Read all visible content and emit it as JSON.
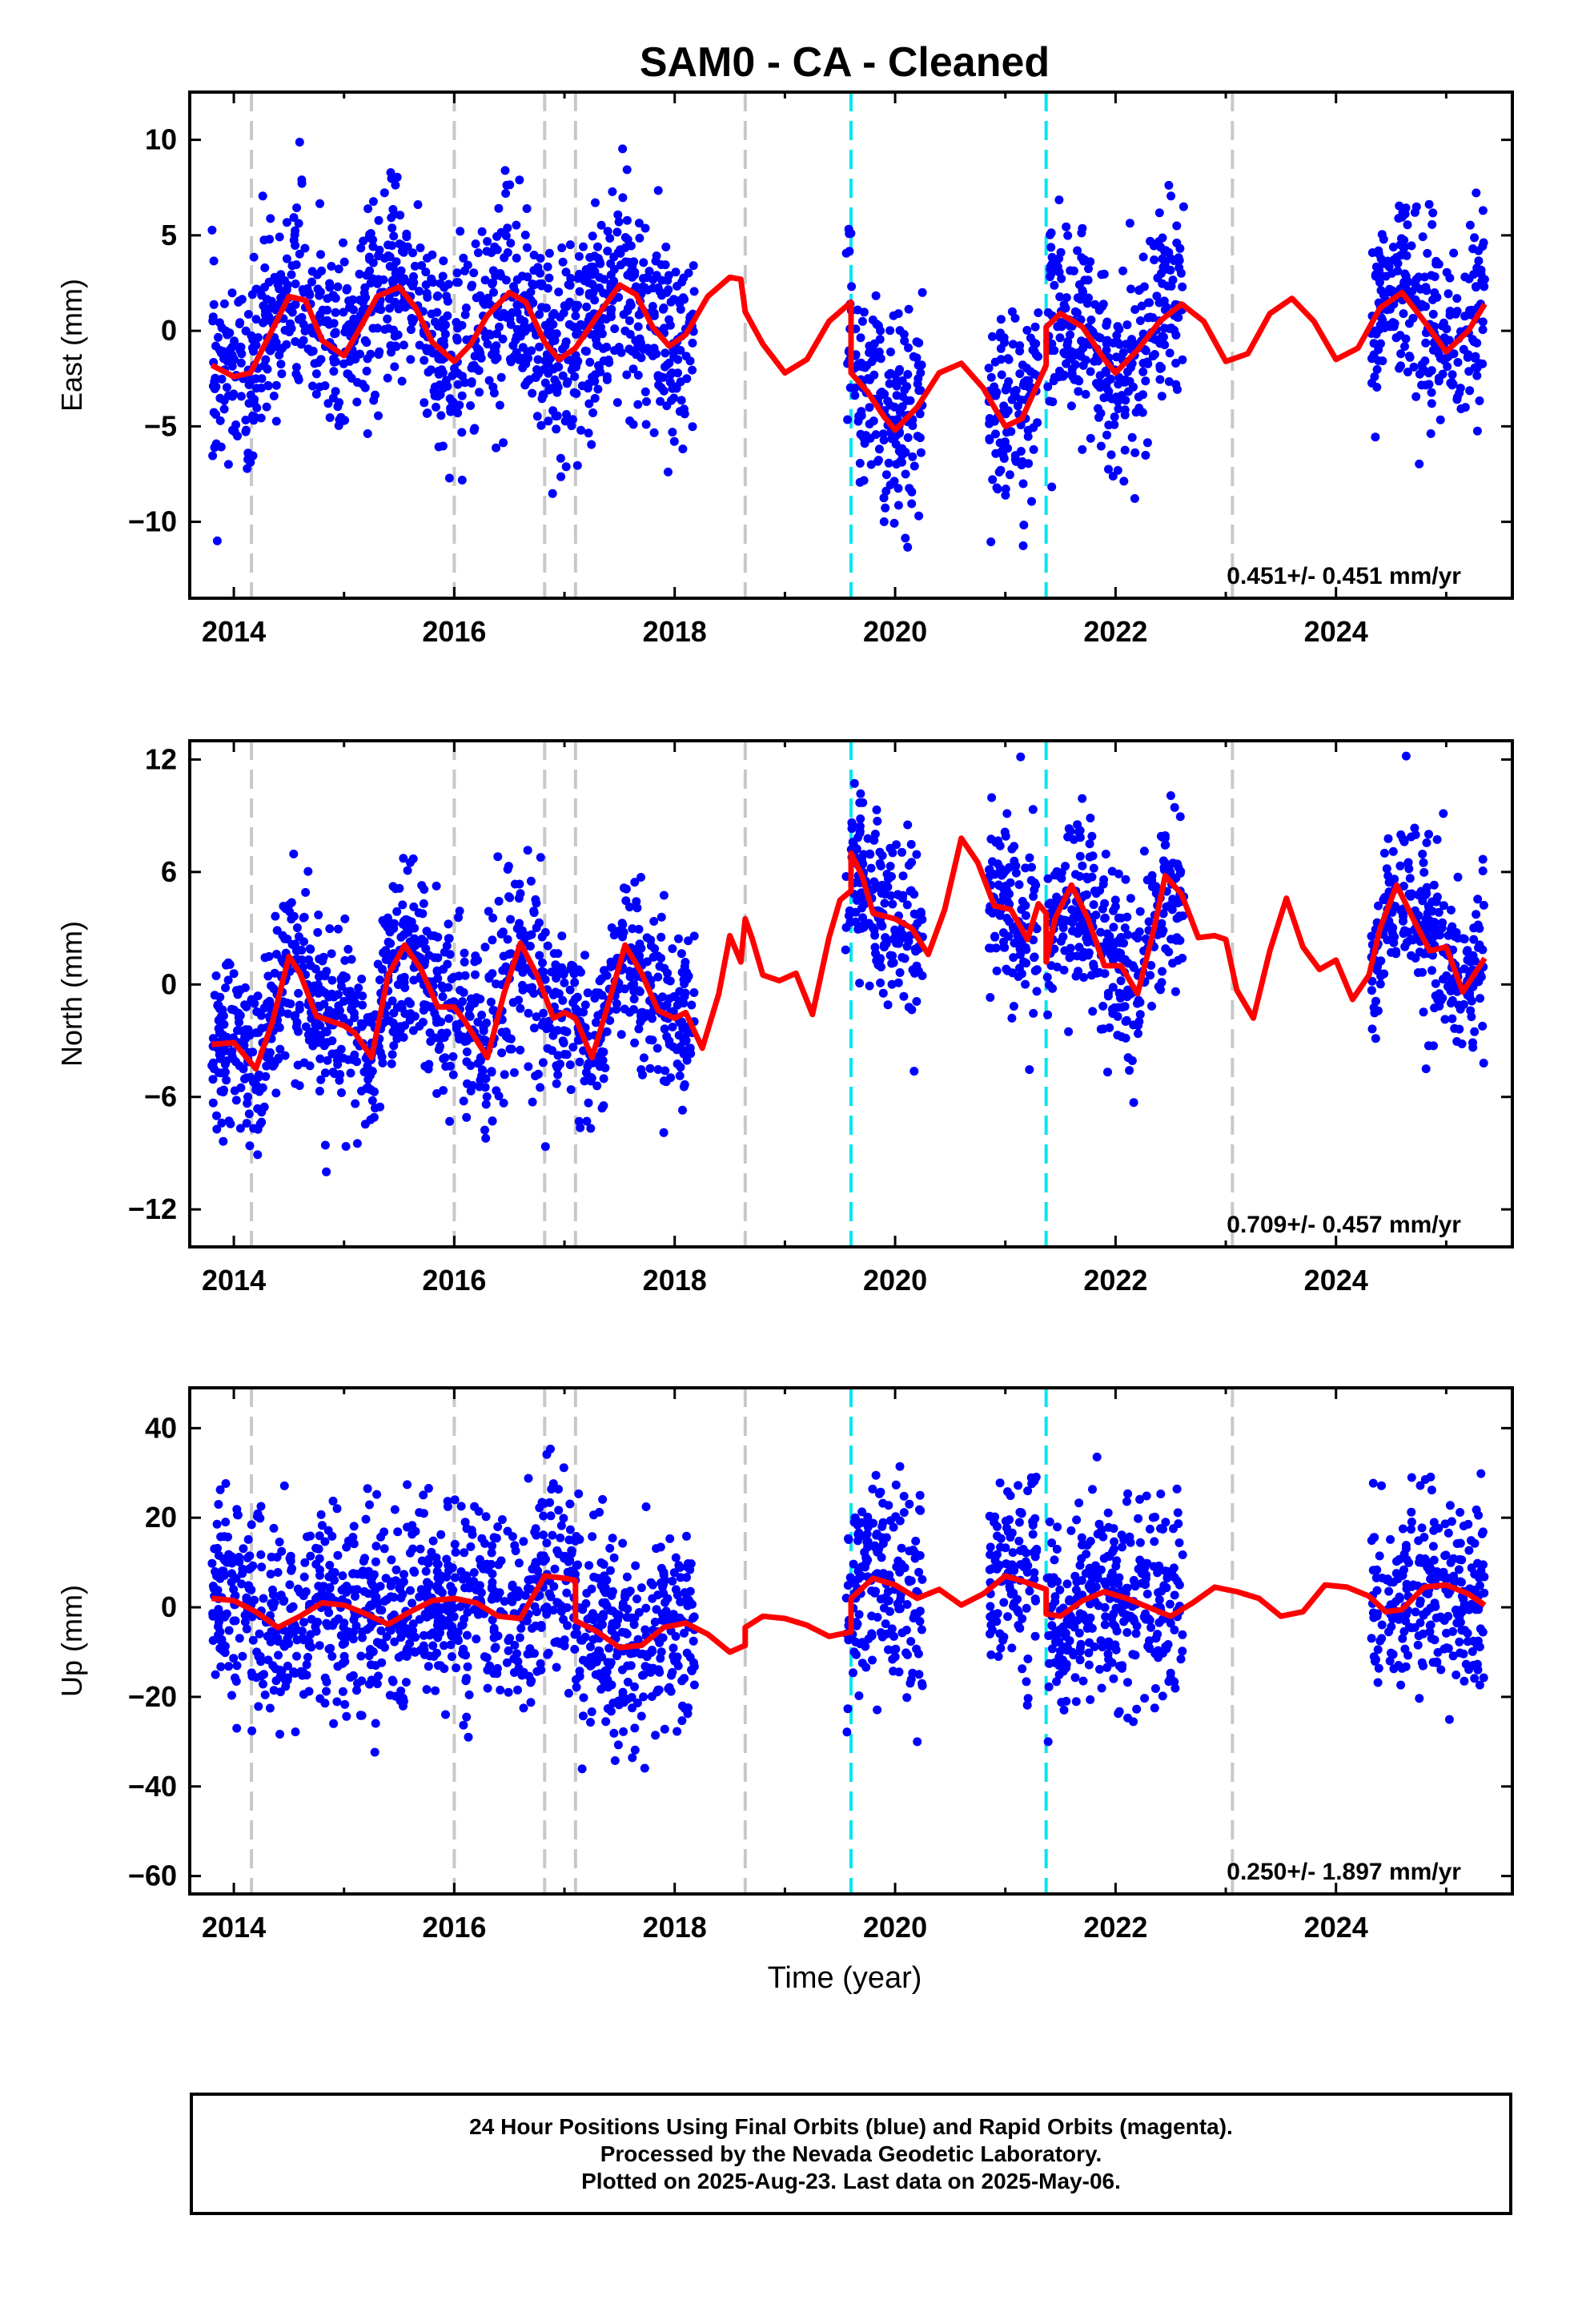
{
  "title": "SAM0  - CA - Cleaned",
  "xlabel": "Time (year)",
  "colors": {
    "data_points": "#0000ff",
    "model_line": "#ff0000",
    "gray_marker": "#c8c8c8",
    "cyan_marker": "#00e5f0",
    "axes": "#000000"
  },
  "x_ticks": [
    "2014",
    "2016",
    "2018",
    "2020",
    "2022",
    "2024"
  ],
  "vertical_markers": {
    "gray": [
      2014.16,
      2016.0,
      2016.82,
      2017.1,
      2018.64,
      2023.06
    ],
    "cyan": [
      2019.6,
      2021.37
    ]
  },
  "caption": {
    "line1": "24 Hour Positions Using Final Orbits (blue) and Rapid Orbits (magenta).",
    "line2": "Processed by the Nevada Geodetic Laboratory.",
    "line3": "Plotted on 2025-Aug-23. Last data on 2025-May-06."
  },
  "chart_data": [
    {
      "type": "scatter",
      "ylabel": "East (mm)",
      "xlim": [
        2013.6,
        2025.6
      ],
      "ylim": [
        -14,
        12.5
      ],
      "y_ticks": [
        "10",
        "5",
        "0",
        "−5",
        "−10"
      ],
      "y_tick_values": [
        10,
        5,
        0,
        -5,
        -10
      ],
      "rate_label": "0.451+/- 0.451 mm/yr",
      "data_segments": [
        [
          2013.8,
          2018.18
        ],
        [
          2019.55,
          2020.25
        ],
        [
          2020.85,
          2021.3
        ],
        [
          2021.38,
          2022.62
        ],
        [
          2024.32,
          2025.35
        ]
      ],
      "model_line": {
        "x": [
          2013.8,
          2014.0,
          2014.15,
          2014.3,
          2014.5,
          2014.65,
          2014.8,
          2015.0,
          2015.15,
          2015.3,
          2015.5,
          2015.65,
          2015.8,
          2016.0,
          2016.15,
          2016.3,
          2016.5,
          2016.65,
          2016.82,
          2016.95,
          2017.1,
          2017.3,
          2017.5,
          2017.65,
          2017.8,
          2017.95,
          2018.1,
          2018.3,
          2018.5,
          2018.6,
          2018.64,
          2018.8,
          2019.0,
          2019.2,
          2019.4,
          2019.6,
          2019.6,
          2019.75,
          2019.9,
          2020.0,
          2020.2,
          2020.4,
          2020.6,
          2020.8,
          2021.0,
          2021.15,
          2021.37,
          2021.37,
          2021.5,
          2021.7,
          2021.9,
          2022.0,
          2022.2,
          2022.4,
          2022.6,
          2022.8,
          2023.0,
          2023.2,
          2023.4,
          2023.6,
          2023.8,
          2024.0,
          2024.2,
          2024.4,
          2024.6,
          2024.8,
          2025.0,
          2025.2,
          2025.35
        ],
        "y": [
          -1.8,
          -2.4,
          -2.2,
          -0.5,
          1.8,
          1.6,
          -0.5,
          -1.3,
          0.2,
          1.8,
          2.3,
          1.2,
          -0.6,
          -1.6,
          -0.7,
          0.8,
          2.0,
          1.5,
          -0.6,
          -1.5,
          -0.9,
          0.8,
          2.4,
          1.9,
          0.2,
          -0.8,
          -0.2,
          1.8,
          2.8,
          2.7,
          1.0,
          -0.7,
          -2.2,
          -1.5,
          0.5,
          1.5,
          -2.2,
          -3.2,
          -4.5,
          -5.2,
          -4.0,
          -2.2,
          -1.7,
          -3.0,
          -5.0,
          -4.6,
          -1.8,
          0.2,
          0.9,
          0.2,
          -1.5,
          -2.2,
          -1.0,
          0.5,
          1.4,
          0.5,
          -1.6,
          -1.2,
          0.9,
          1.7,
          0.5,
          -1.5,
          -0.9,
          1.2,
          2.0,
          0.5,
          -1.1,
          0.0,
          1.4
        ]
      }
    },
    {
      "type": "scatter",
      "ylabel": "North (mm)",
      "xlim": [
        2013.6,
        2025.6
      ],
      "ylim": [
        -14,
        13
      ],
      "y_ticks": [
        "12",
        "6",
        "0",
        "−6",
        "−12"
      ],
      "y_tick_values": [
        12,
        6,
        0,
        -6,
        -12
      ],
      "rate_label": "0.709+/- 0.457 mm/yr",
      "data_segments": [
        [
          2013.8,
          2018.18
        ],
        [
          2019.55,
          2020.25
        ],
        [
          2020.85,
          2021.3
        ],
        [
          2021.38,
          2022.62
        ],
        [
          2024.32,
          2025.35
        ]
      ],
      "model_line": {
        "x": [
          2013.8,
          2014.0,
          2014.2,
          2014.35,
          2014.5,
          2014.6,
          2014.75,
          2014.9,
          2015.0,
          2015.1,
          2015.25,
          2015.4,
          2015.55,
          2015.7,
          2015.85,
          2016.0,
          2016.1,
          2016.3,
          2016.45,
          2016.6,
          2016.75,
          2016.9,
          2017.0,
          2017.1,
          2017.25,
          2017.4,
          2017.55,
          2017.7,
          2017.85,
          2018.0,
          2018.1,
          2018.25,
          2018.4,
          2018.5,
          2018.6,
          2018.64,
          2018.7,
          2018.8,
          2018.95,
          2019.1,
          2019.25,
          2019.4,
          2019.5,
          2019.6,
          2019.6,
          2019.7,
          2019.8,
          2020.0,
          2020.15,
          2020.3,
          2020.45,
          2020.6,
          2020.75,
          2020.9,
          2021.05,
          2021.2,
          2021.3,
          2021.37,
          2021.37,
          2021.45,
          2021.6,
          2021.75,
          2021.9,
          2022.05,
          2022.2,
          2022.35,
          2022.45,
          2022.6,
          2022.75,
          2022.9,
          2023.0,
          2023.1,
          2023.25,
          2023.4,
          2023.55,
          2023.7,
          2023.85,
          2024.0,
          2024.15,
          2024.3,
          2024.4,
          2024.55,
          2024.7,
          2024.85,
          2025.0,
          2025.15,
          2025.35
        ],
        "y": [
          -3.2,
          -3.1,
          -4.5,
          -2.0,
          1.5,
          0.6,
          -1.7,
          -2.0,
          -2.2,
          -2.6,
          -3.9,
          0.5,
          2.1,
          0.8,
          -1.2,
          -1.2,
          -2.0,
          -3.9,
          -0.5,
          2.2,
          0.5,
          -1.8,
          -1.5,
          -1.8,
          -3.9,
          -1.0,
          2.1,
          0.6,
          -1.4,
          -1.8,
          -1.5,
          -3.4,
          -0.5,
          2.6,
          1.2,
          3.5,
          2.5,
          0.5,
          0.2,
          0.6,
          -1.6,
          2.5,
          4.5,
          5.0,
          7.0,
          5.8,
          3.8,
          3.5,
          3.0,
          1.6,
          4.0,
          7.8,
          6.5,
          4.2,
          4.0,
          2.4,
          4.3,
          3.8,
          1.2,
          3.5,
          5.3,
          3.5,
          1.0,
          1.0,
          -0.5,
          3.0,
          5.8,
          4.8,
          2.5,
          2.6,
          2.4,
          -0.3,
          -1.8,
          1.8,
          4.6,
          2.0,
          0.8,
          1.3,
          -0.8,
          0.5,
          3.0,
          5.3,
          3.5,
          1.8,
          2.0,
          -0.4,
          1.4
        ]
      }
    },
    {
      "type": "scatter",
      "ylabel": "Up (mm)",
      "xlim": [
        2013.6,
        2025.6
      ],
      "ylim": [
        -64,
        49
      ],
      "y_ticks": [
        "40",
        "20",
        "0",
        "−20",
        "−40",
        "−60"
      ],
      "y_tick_values": [
        40,
        20,
        0,
        -20,
        -40,
        -60
      ],
      "rate_label": "0.250+/- 1.897 mm/yr",
      "data_segments": [
        [
          2013.8,
          2018.18
        ],
        [
          2019.55,
          2020.25
        ],
        [
          2020.85,
          2021.3
        ],
        [
          2021.38,
          2022.62
        ],
        [
          2024.32,
          2025.35
        ]
      ],
      "model_line": {
        "x": [
          2013.8,
          2014.0,
          2014.2,
          2014.4,
          2014.6,
          2014.8,
          2015.0,
          2015.2,
          2015.4,
          2015.6,
          2015.8,
          2016.0,
          2016.2,
          2016.4,
          2016.6,
          2016.82,
          2017.0,
          2017.1,
          2017.1,
          2017.3,
          2017.5,
          2017.7,
          2017.9,
          2018.1,
          2018.3,
          2018.5,
          2018.64,
          2018.64,
          2018.8,
          2019.0,
          2019.2,
          2019.4,
          2019.6,
          2019.6,
          2019.8,
          2020.0,
          2020.2,
          2020.4,
          2020.6,
          2020.8,
          2021.0,
          2021.2,
          2021.37,
          2021.37,
          2021.5,
          2021.7,
          2021.9,
          2022.1,
          2022.3,
          2022.5,
          2022.7,
          2022.9,
          2023.1,
          2023.3,
          2023.5,
          2023.7,
          2023.9,
          2024.1,
          2024.3,
          2024.45,
          2024.6,
          2024.8,
          2025.0,
          2025.2,
          2025.35
        ],
        "y": [
          2.0,
          1.5,
          -1.0,
          -4.5,
          -2.0,
          1.0,
          0.5,
          -1.5,
          -3.8,
          -1.0,
          1.5,
          2.0,
          1.0,
          -2.0,
          -2.5,
          7.0,
          6.5,
          6.0,
          -3.0,
          -5.5,
          -9.0,
          -8.5,
          -4.5,
          -3.5,
          -6.0,
          -10.0,
          -8.5,
          -4.5,
          -2.0,
          -2.5,
          -4.0,
          -6.5,
          -5.5,
          2.0,
          6.5,
          5.0,
          2.0,
          4.0,
          0.5,
          3.0,
          7.0,
          5.5,
          4.0,
          -1.5,
          -2.0,
          1.5,
          3.5,
          2.0,
          0.0,
          -2.0,
          1.0,
          4.5,
          3.5,
          2.0,
          -2.0,
          -1.0,
          5.0,
          4.5,
          2.5,
          -1.0,
          -0.5,
          4.5,
          5.0,
          3.0,
          0.5
        ]
      }
    }
  ]
}
